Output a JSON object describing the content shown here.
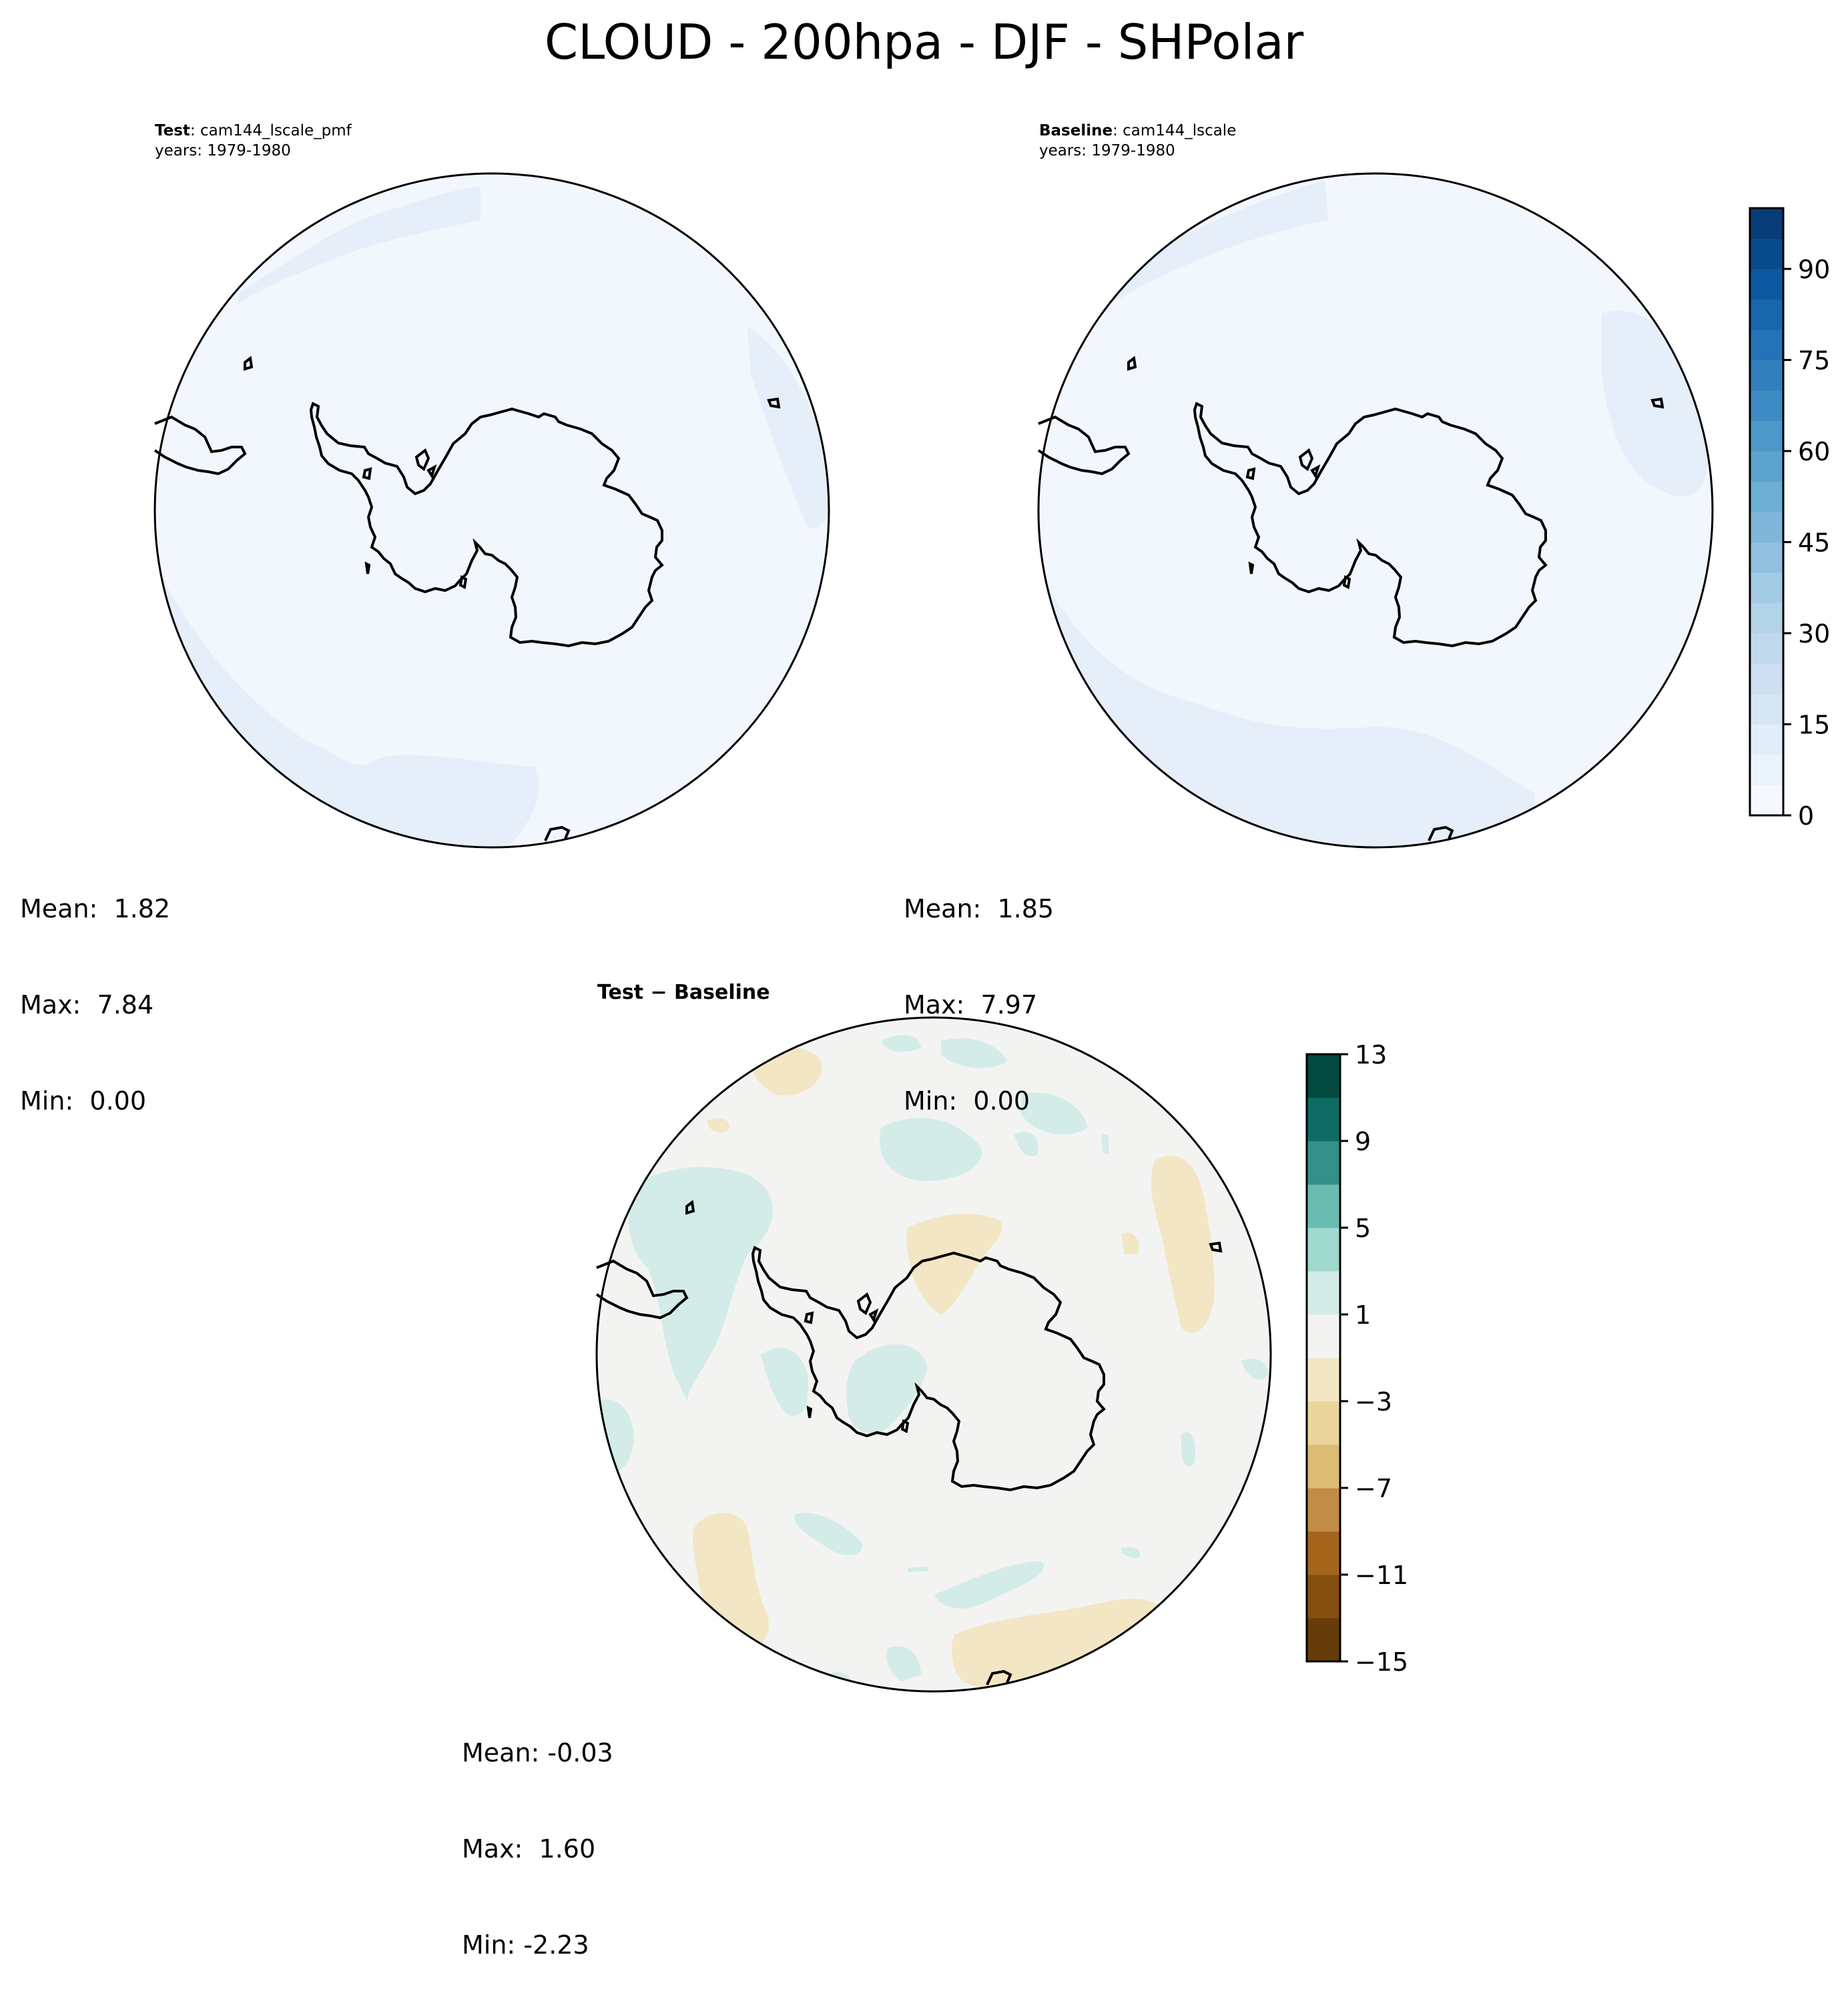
{
  "title": "CLOUD - 200hpa - DJF - SHPolar",
  "panels": {
    "test": {
      "label_bold": "Test",
      "label_rest": ": cam144_lscale_pmf",
      "years": "years: 1979-1980",
      "mean": "Mean:  1.82",
      "max": "Max:  7.84",
      "min": "Min:  0.00"
    },
    "baseline": {
      "label_bold": "Baseline",
      "label_rest": ": cam144_lscale",
      "years": "years: 1979-1980",
      "mean": "Mean:  1.85",
      "max": "Max:  7.97",
      "min": "Min:  0.00"
    },
    "diff": {
      "title": "Test − Baseline",
      "mean": "Mean: -0.03",
      "max": "Max:  1.60",
      "min": "Min: -2.23"
    }
  },
  "colorbars": {
    "main": {
      "colormap": "Blues",
      "min": 0,
      "max": 100,
      "step": 5,
      "ticks": [
        "0",
        "15",
        "30",
        "45",
        "60",
        "75",
        "90"
      ],
      "colors": [
        "#f5f9fe",
        "#ebf3fb",
        "#e1edf8",
        "#d7e6f5",
        "#cddff1",
        "#c1d9ed",
        "#b3d3e8",
        "#a3cce3",
        "#92c0df",
        "#7fb6da",
        "#6daed5",
        "#5da3cf",
        "#4e97c9",
        "#3f8bc3",
        "#3180bd",
        "#2473b6",
        "#1866ac",
        "#0d59a1",
        "#084c8d",
        "#083c76"
      ],
      "field_color": "#f2f7fd",
      "patch_color": "#e5eef9"
    },
    "diff": {
      "colormap": "BrBG",
      "min": -15,
      "max": 13,
      "step": 2,
      "ticks": [
        "−15",
        "−11",
        "−7",
        "−3",
        "1",
        "5",
        "9",
        "13"
      ],
      "colors": [
        "#653c0a",
        "#844e0f",
        "#a4661c",
        "#c18c46",
        "#dcbb73",
        "#ecd59c",
        "#f3e6c4",
        "#f3f4f2",
        "#d3ece8",
        "#a0dace",
        "#6bbcb0",
        "#349187",
        "#0e6c65",
        "#024a40"
      ],
      "field_color": "#f3f4f2",
      "positive_color": "#d3ece8",
      "negative_color": "#f3e6c4"
    }
  }
}
